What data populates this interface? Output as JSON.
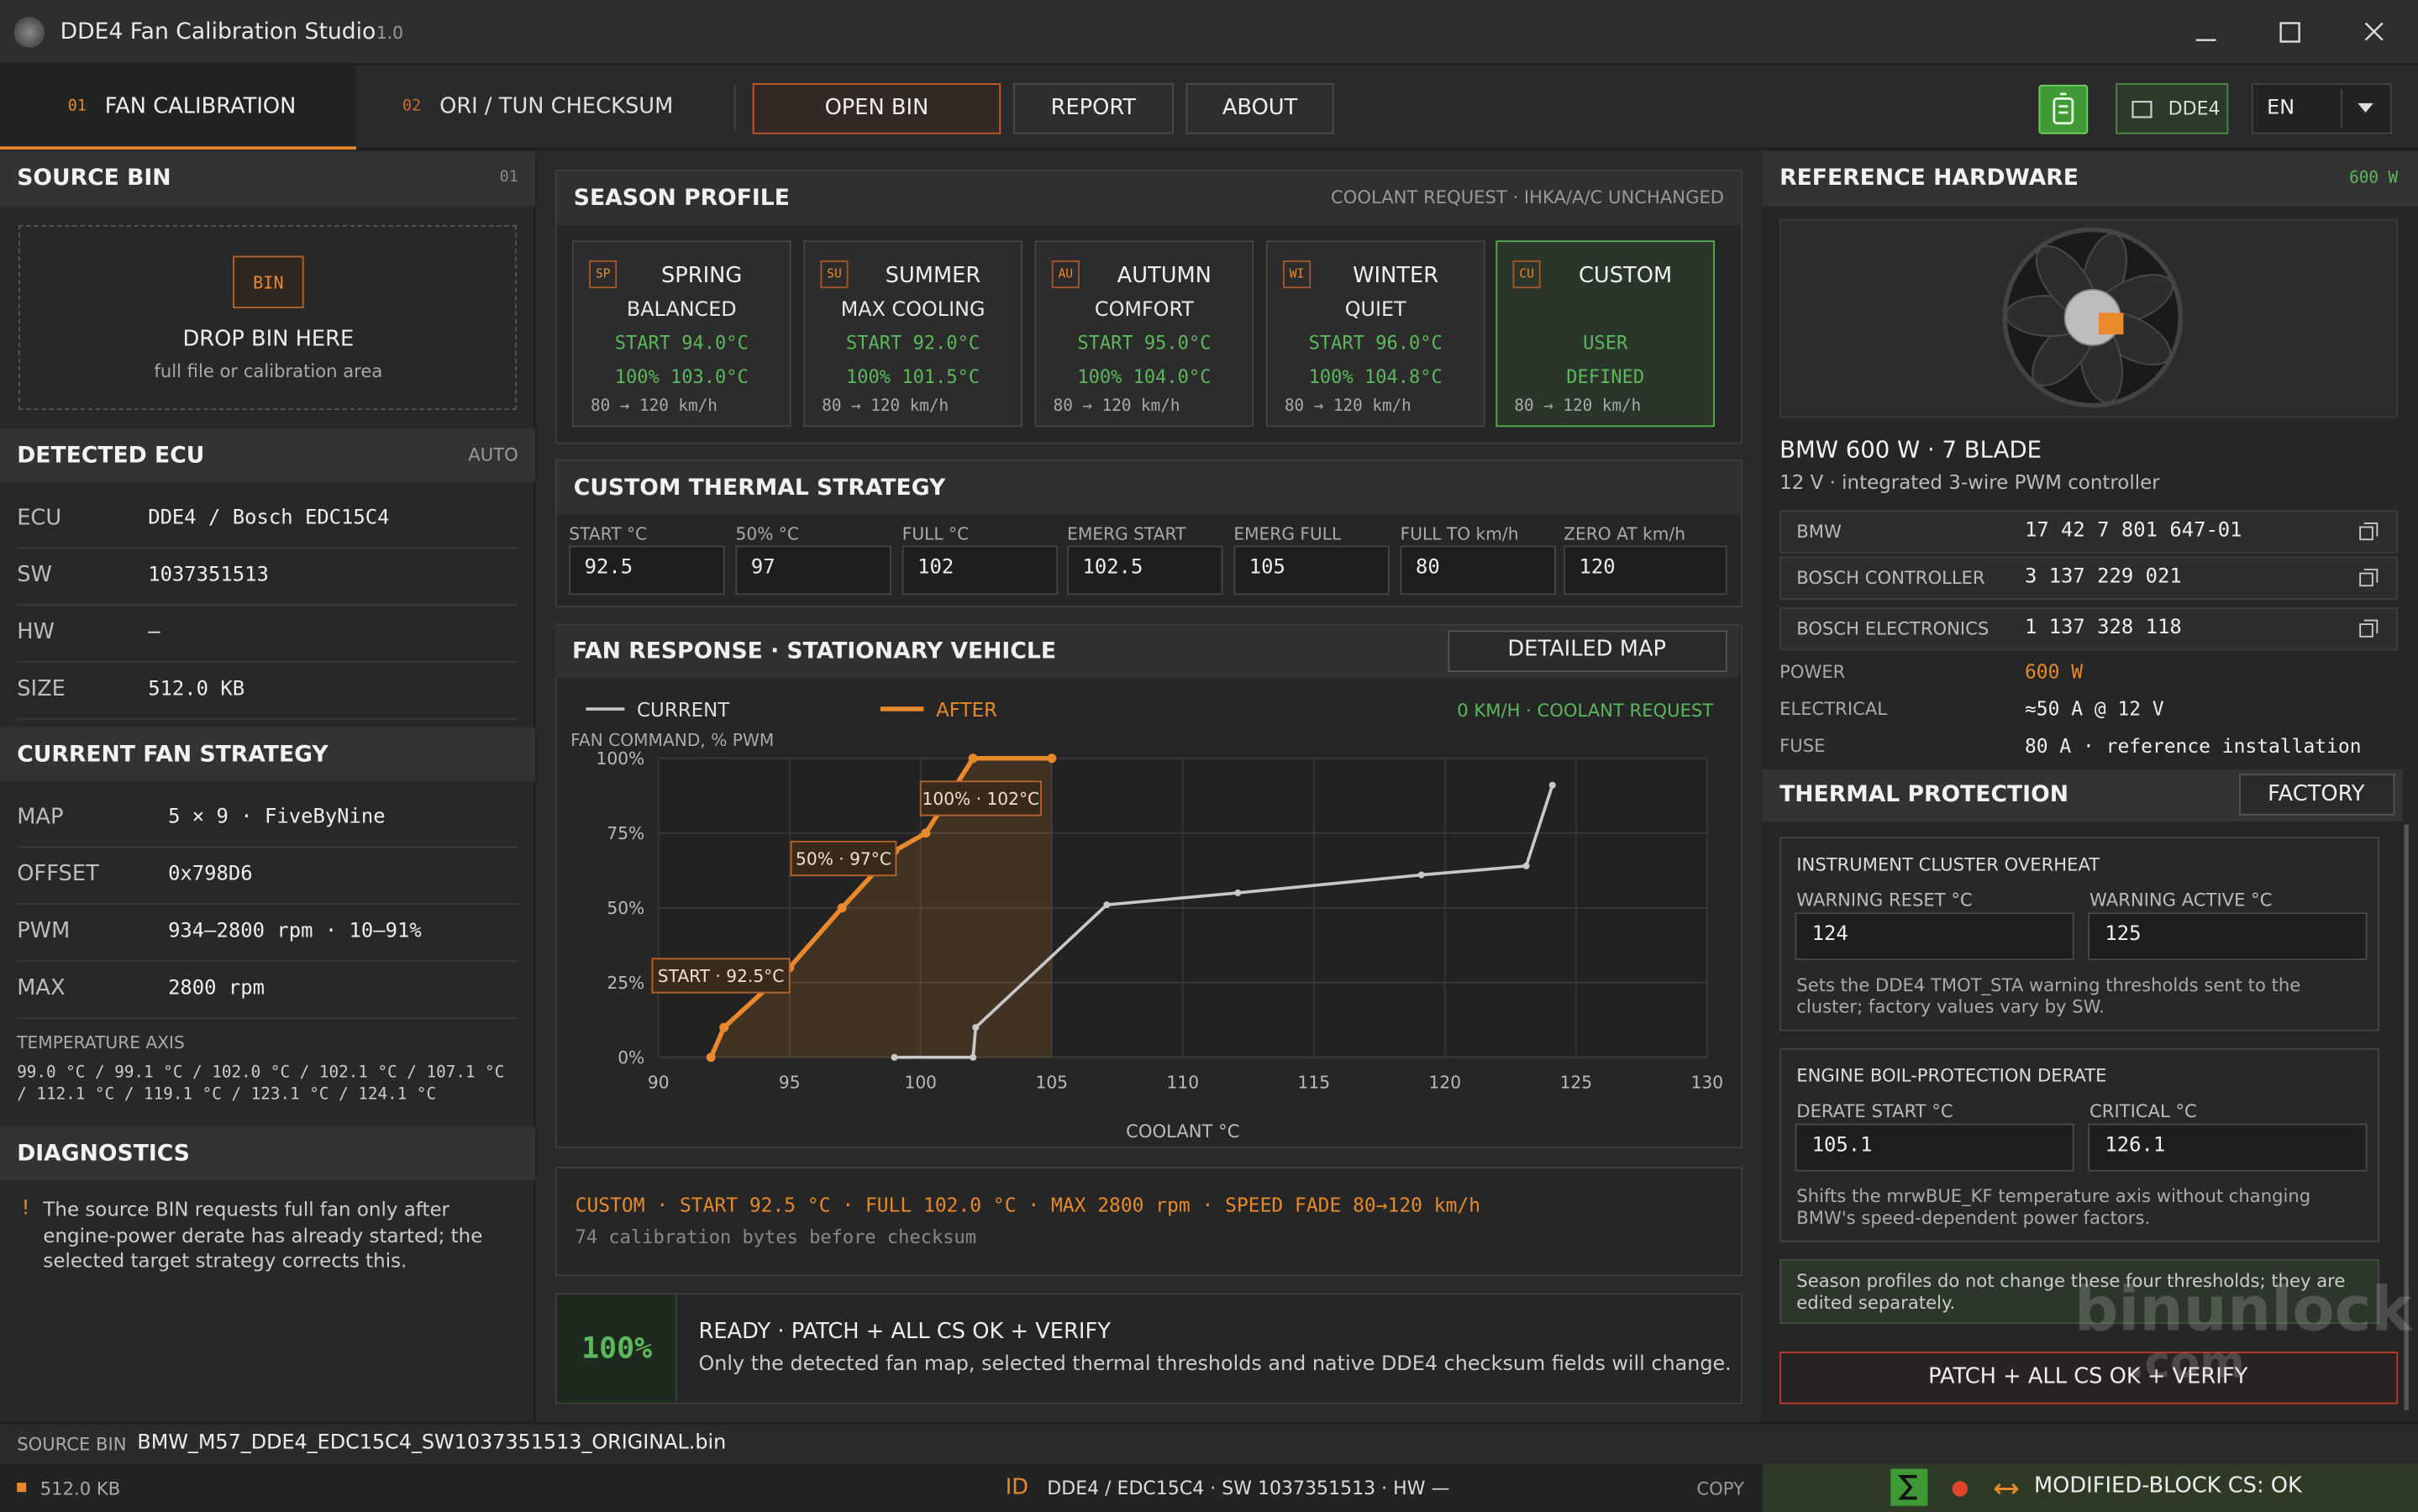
{
  "window": {
    "title": "DDE4 Fan Calibration Studio",
    "version": "1.0"
  },
  "tabs": [
    {
      "number": "01",
      "label": "FAN CALIBRATION"
    },
    {
      "number": "02",
      "label": "ORI / TUN CHECKSUM"
    }
  ],
  "toolbar": {
    "buttons": [
      "OPEN BIN",
      "REPORT",
      "ABOUT"
    ],
    "ecu_chip": "DDE4",
    "language": "EN"
  },
  "source_bin": {
    "title": "SOURCE BIN",
    "number": "01",
    "badge": "BIN",
    "drop_label": "DROP BIN HERE",
    "drop_hint": "full file or calibration area"
  },
  "detected_ecu": {
    "title": "DETECTED ECU",
    "mode": "AUTO",
    "rows": [
      [
        "ECU",
        "DDE4 / Bosch EDC15C4"
      ],
      [
        "SW",
        "1037351513"
      ],
      [
        "HW",
        "—"
      ],
      [
        "SIZE",
        "512.0 KB"
      ]
    ]
  },
  "fan_strategy": {
    "title": "CURRENT FAN STRATEGY",
    "rows": [
      [
        "MAP",
        "5 × 9 · FiveByNine"
      ],
      [
        "OFFSET",
        "0x798D6"
      ],
      [
        "PWM",
        "934–2800 rpm · 10–91%"
      ],
      [
        "MAX",
        "2800 rpm"
      ]
    ],
    "temperature_axis_label": "TEMPERATURE AXIS",
    "temperature_axis": "99.0 °C / 99.1 °C / 102.0 °C / 102.1 °C / 107.1 °C / 112.1 °C / 119.1 °C / 123.1 °C / 124.1 °C"
  },
  "diagnostics": {
    "title": "DIAGNOSTICS",
    "icon": "!",
    "message": "The source BIN requests full fan only after engine-power derate has already started; the selected target strategy corrects this."
  },
  "season_profile": {
    "title": "SEASON PROFILE",
    "note": "COOLANT REQUEST · IHKA/A/C UNCHANGED",
    "cards": [
      {
        "code": "SP",
        "name": "SPRING",
        "mode": "BALANCED",
        "start": "START 94.0°C",
        "full": "100% 103.0°C",
        "speed": "80 → 120 km/h"
      },
      {
        "code": "SU",
        "name": "SUMMER",
        "mode": "MAX COOLING",
        "start": "START 92.0°C",
        "full": "100% 101.5°C",
        "speed": "80 → 120 km/h"
      },
      {
        "code": "AU",
        "name": "AUTUMN",
        "mode": "COMFORT",
        "start": "START 95.0°C",
        "full": "100% 104.0°C",
        "speed": "80 → 120 km/h"
      },
      {
        "code": "WI",
        "name": "WINTER",
        "mode": "QUIET",
        "start": "START 96.0°C",
        "full": "100% 104.8°C",
        "speed": "80 → 120 km/h"
      },
      {
        "code": "CU",
        "name": "CUSTOM",
        "start": "USER",
        "full": "DEFINED",
        "speed": "80 → 120 km/h"
      }
    ]
  },
  "thermal_strategy": {
    "title": "CUSTOM THERMAL STRATEGY",
    "fields": [
      {
        "label": "START °C",
        "value": "92.5"
      },
      {
        "label": "50% °C",
        "value": "97"
      },
      {
        "label": "FULL °C",
        "value": "102"
      },
      {
        "label": "EMERG START",
        "value": "102.5"
      },
      {
        "label": "EMERG FULL",
        "value": "105"
      },
      {
        "label": "FULL TO km/h",
        "value": "80"
      },
      {
        "label": "ZERO AT km/h",
        "value": "120"
      }
    ]
  },
  "fan_response": {
    "title": "FAN RESPONSE · STATIONARY VEHICLE",
    "button": "DETAILED MAP",
    "condition": "0 KM/H · COOLANT REQUEST",
    "annotations": [
      "START · 92.5°C",
      "50% · 97°C",
      "100% · 102°C"
    ],
    "chart": {
      "type": "line",
      "y_label": "FAN COMMAND, % PWM",
      "x_label": "COOLANT °C",
      "xlim": [
        90,
        130
      ],
      "xticks": [
        90,
        95,
        100,
        105,
        110,
        115,
        120,
        125,
        130
      ],
      "ylim": [
        0,
        100
      ],
      "yticks": [
        {
          "value": 0,
          "label": "0%"
        },
        {
          "value": 25,
          "label": "25%"
        },
        {
          "value": 50,
          "label": "50%"
        },
        {
          "value": 75,
          "label": "75%"
        },
        {
          "value": 100,
          "label": "100%"
        }
      ],
      "grid": true,
      "series": [
        {
          "name": "CURRENT",
          "color": "#c8c8c8",
          "x": [
            99,
            102,
            102.1,
            107.1,
            112.1,
            119.1,
            123.1,
            124.1
          ],
          "values": [
            0,
            0,
            10,
            51,
            55,
            61,
            64,
            91
          ]
        },
        {
          "name": "AFTER",
          "color": "#e8892b",
          "x": [
            92,
            92.5,
            95,
            97,
            99,
            100.2,
            102,
            105
          ],
          "values": [
            0,
            10,
            30,
            50,
            69,
            75,
            100,
            100
          ]
        }
      ]
    }
  },
  "summary": {
    "line": "CUSTOM · START 92.5 °C · FULL 102.0 °C · MAX 2800 rpm · SPEED FADE 80→120 km/h",
    "detail": "74 calibration bytes before checksum"
  },
  "ready": {
    "percent": "100%",
    "title": "READY · PATCH + ALL CS OK + VERIFY",
    "message": "Only the detected fan map, selected thermal thresholds and native DDE4 checksum fields will change."
  },
  "reference_hardware": {
    "title": "REFERENCE HARDWARE",
    "rating": "600 W",
    "model": "BMW 600 W · 7 BLADE",
    "description": "12 V · integrated 3-wire PWM controller",
    "part_numbers": [
      [
        "BMW",
        "17 42 7 801 647-01"
      ],
      [
        "BOSCH CONTROLLER",
        "3 137 229 021"
      ],
      [
        "BOSCH ELECTRONICS",
        "1 137 328 118"
      ]
    ],
    "specs": [
      [
        "POWER",
        "600 W"
      ],
      [
        "ELECTRICAL",
        "≈50 A @ 12 V"
      ],
      [
        "FUSE",
        "80 A · reference installation"
      ]
    ]
  },
  "thermal_protection": {
    "title": "THERMAL PROTECTION",
    "button": "FACTORY",
    "groups": [
      {
        "title": "INSTRUMENT CLUSTER OVERHEAT",
        "fields": [
          {
            "label": "WARNING RESET °C",
            "value": "124"
          },
          {
            "label": "WARNING ACTIVE °C",
            "value": "125"
          }
        ],
        "note": "Sets the DDE4 TMOT_STA warning thresholds sent to the cluster; factory values vary by SW."
      },
      {
        "title": "ENGINE BOIL-PROTECTION DERATE",
        "fields": [
          {
            "label": "DERATE START °C",
            "value": "105.1"
          },
          {
            "label": "CRITICAL °C",
            "value": "126.1"
          }
        ],
        "note": "Shifts the mrwBUE_KF temperature axis without changing BMW's speed-dependent power factors."
      }
    ],
    "info": "Season profiles do not change these four thresholds; they are edited separately.",
    "patch_button": "PATCH + ALL CS OK + VERIFY"
  },
  "status": {
    "source_label": "SOURCE BIN",
    "file_name": "BMW_M57_DDE4_EDC15C4_SW1037351513_ORIGINAL.bin",
    "size": "512.0 KB",
    "id_label": "ID",
    "id": "DDE4 / EDC15C4 · SW 1037351513 · HW —",
    "copy": "COPY",
    "checksum": "MODIFIED-BLOCK CS: OK"
  },
  "watermark": [
    "binunlock",
    ".com"
  ]
}
